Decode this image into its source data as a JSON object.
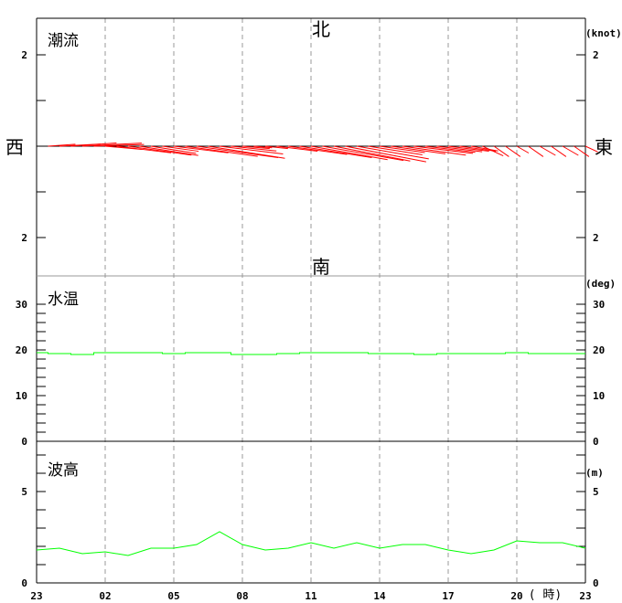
{
  "compass": {
    "north": "北",
    "south": "南",
    "west": "西",
    "east": "東"
  },
  "colors": {
    "current": "#ff0000",
    "temperature": "#00ff00",
    "wave": "#00ff00",
    "grid": "#999999"
  },
  "x_axis": {
    "ticks": [
      "23",
      "02",
      "05",
      "08",
      "11",
      "14",
      "17",
      "20",
      "23"
    ],
    "unit_label": "( 時)"
  },
  "chart_data": [
    {
      "type": "stick",
      "title": "潮流",
      "unit": "(knot)",
      "y_tick_labels": [
        "2",
        "2"
      ],
      "ylim": [
        -2,
        2
      ],
      "grid": "vertical dashed",
      "sticks": [
        [
          "23:00",
          0.0,
          90
        ],
        [
          "23:30",
          0.6,
          86
        ],
        [
          "00:00",
          0.9,
          87
        ],
        [
          "00:30",
          1.0,
          86
        ],
        [
          "01:00",
          1.3,
          87
        ],
        [
          "01:30",
          1.1,
          88
        ],
        [
          "02:00",
          0.8,
          95
        ],
        [
          "02:30",
          1.2,
          97
        ],
        [
          "03:00",
          1.4,
          98
        ],
        [
          "03:30",
          1.3,
          99
        ],
        [
          "04:00",
          1.0,
          99
        ],
        [
          "04:30",
          0.8,
          98
        ],
        [
          "05:00",
          1.2,
          97
        ],
        [
          "05:30",
          1.6,
          98
        ],
        [
          "06:00",
          1.8,
          98
        ],
        [
          "06:30",
          1.7,
          99
        ],
        [
          "07:00",
          1.4,
          97
        ],
        [
          "07:30",
          1.0,
          96
        ],
        [
          "08:00",
          0.6,
          95
        ],
        [
          "08:30",
          0.4,
          95
        ],
        [
          "09:00",
          0.5,
          96
        ],
        [
          "09:30",
          0.9,
          97
        ],
        [
          "10:00",
          1.3,
          98
        ],
        [
          "10:30",
          1.6,
          99
        ],
        [
          "11:00",
          1.7,
          100
        ],
        [
          "11:30",
          1.8,
          100
        ],
        [
          "12:00",
          1.7,
          101
        ],
        [
          "12:30",
          1.8,
          101
        ],
        [
          "13:00",
          1.6,
          100
        ],
        [
          "13:30",
          1.2,
          99
        ],
        [
          "14:00",
          1.0,
          98
        ],
        [
          "14:30",
          1.2,
          98
        ],
        [
          "15:00",
          1.4,
          98
        ],
        [
          "15:30",
          1.3,
          97
        ],
        [
          "16:00",
          1.1,
          97
        ],
        [
          "16:30",
          1.0,
          97
        ],
        [
          "17:00",
          0.9,
          97
        ],
        [
          "17:30",
          0.8,
          98
        ],
        [
          "18:00",
          0.6,
          100
        ],
        [
          "18:30",
          0.5,
          115
        ],
        [
          "19:00",
          0.4,
          125
        ],
        [
          "19:30",
          0.4,
          125
        ],
        [
          "20:00",
          0.3,
          120
        ],
        [
          "20:30",
          0.4,
          125
        ],
        [
          "21:00",
          0.4,
          120
        ],
        [
          "21:30",
          0.4,
          125
        ],
        [
          "22:00",
          0.4,
          120
        ],
        [
          "22:30",
          0.4,
          125
        ],
        [
          "23:00",
          0.3,
          115
        ]
      ]
    },
    {
      "type": "line",
      "title": "水温",
      "unit": "(deg)",
      "y_tick_labels": [
        "30",
        "20",
        "10",
        "0"
      ],
      "ylim": [
        0,
        30
      ],
      "x": [
        "23",
        "00",
        "01",
        "02",
        "03",
        "04",
        "05",
        "06",
        "07",
        "08",
        "09",
        "10",
        "11",
        "12",
        "13",
        "14",
        "15",
        "16",
        "17",
        "18",
        "19",
        "20",
        "21",
        "22",
        "23"
      ],
      "values": [
        19.4,
        19.2,
        19.0,
        19.4,
        19.4,
        19.4,
        19.2,
        19.4,
        19.4,
        19.0,
        19.0,
        19.2,
        19.4,
        19.4,
        19.4,
        19.2,
        19.2,
        19.0,
        19.2,
        19.2,
        19.2,
        19.4,
        19.2,
        19.2,
        19.2
      ]
    },
    {
      "type": "line",
      "title": "波高",
      "unit": "(m)",
      "y_tick_labels": [
        "5",
        "0"
      ],
      "ylim": [
        0,
        7.5
      ],
      "x": [
        "23",
        "00",
        "01",
        "02",
        "03",
        "04",
        "05",
        "06",
        "07",
        "08",
        "09",
        "10",
        "11",
        "12",
        "13",
        "14",
        "15",
        "16",
        "17",
        "18",
        "19",
        "20",
        "21",
        "22",
        "23"
      ],
      "values": [
        1.8,
        1.9,
        1.6,
        1.7,
        1.5,
        1.9,
        1.9,
        2.1,
        2.8,
        2.1,
        1.8,
        1.9,
        2.2,
        1.9,
        2.2,
        1.9,
        2.1,
        2.1,
        1.8,
        1.6,
        1.8,
        2.3,
        2.2,
        2.2,
        1.9
      ]
    }
  ]
}
